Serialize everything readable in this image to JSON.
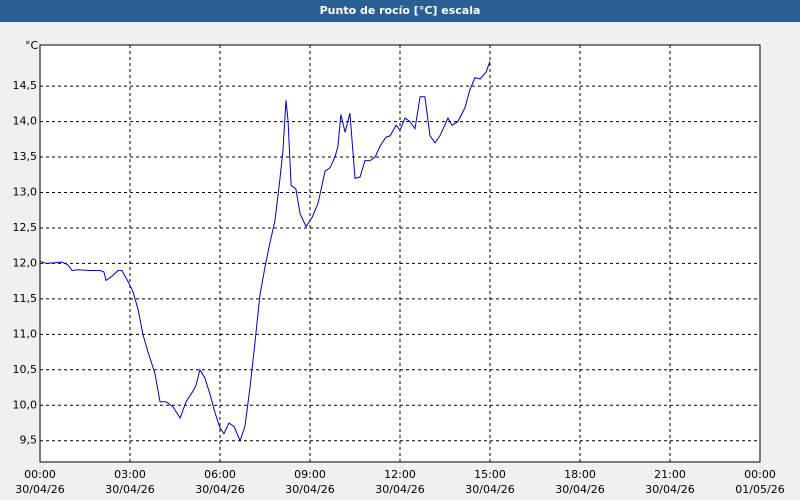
{
  "chart_data": {
    "type": "line",
    "title": "Punto de rocío [°C] escala",
    "y_unit": "°C",
    "color": "#0000c8",
    "grid": true,
    "x": [
      0,
      0.2,
      0.5,
      0.73,
      0.93,
      1.07,
      1.27,
      1.67,
      2,
      2.13,
      2.2,
      2.4,
      2.6,
      2.73,
      2.93,
      3.1,
      3.27,
      3.43,
      3.6,
      3.83,
      4,
      4.2,
      4.43,
      4.67,
      4.87,
      5.1,
      5.2,
      5.33,
      5.5,
      5.67,
      5.83,
      6,
      6.13,
      6.3,
      6.47,
      6.67,
      6.83,
      7,
      7.17,
      7.33,
      7.5,
      7.67,
      7.83,
      8,
      8.1,
      8.2,
      8.27,
      8.37,
      8.53,
      8.67,
      8.87,
      9.07,
      9.27,
      9.5,
      9.67,
      9.83,
      9.93,
      10.03,
      10.17,
      10.33,
      10.5,
      10.67,
      10.83,
      11,
      11.17,
      11.33,
      11.53,
      11.67,
      11.87,
      12,
      12.17,
      12.33,
      12.5,
      12.67,
      12.83,
      13,
      13.17,
      13.33,
      13.6,
      13.73,
      13.93,
      14.17,
      14.33,
      14.5,
      14.67,
      14.87,
      15
    ],
    "values": [
      12.03,
      12.0,
      12.01,
      12.02,
      11.98,
      11.9,
      11.91,
      11.9,
      11.9,
      11.88,
      11.76,
      11.82,
      11.9,
      11.9,
      11.75,
      11.6,
      11.35,
      11.0,
      10.75,
      10.45,
      10.05,
      10.05,
      9.98,
      9.82,
      10.05,
      10.2,
      10.28,
      10.5,
      10.38,
      10.15,
      9.9,
      9.68,
      9.6,
      9.75,
      9.7,
      9.5,
      9.7,
      10.25,
      10.9,
      11.55,
      11.95,
      12.3,
      12.6,
      13.2,
      13.6,
      14.3,
      14.0,
      13.1,
      13.05,
      12.7,
      12.52,
      12.65,
      12.85,
      13.3,
      13.35,
      13.5,
      13.65,
      14.1,
      13.85,
      14.12,
      13.2,
      13.22,
      13.45,
      13.45,
      13.5,
      13.65,
      13.78,
      13.8,
      13.95,
      13.88,
      14.05,
      14.0,
      13.9,
      14.35,
      14.35,
      13.8,
      13.7,
      13.8,
      14.05,
      13.95,
      14.0,
      14.2,
      14.45,
      14.62,
      14.6,
      14.7,
      14.85
    ],
    "xlim": [
      0,
      24
    ],
    "xticks": [
      {
        "value": 0,
        "label": "00:00",
        "date": "30/04/26"
      },
      {
        "value": 3,
        "label": "03:00",
        "date": "30/04/26"
      },
      {
        "value": 6,
        "label": "06:00",
        "date": "30/04/26"
      },
      {
        "value": 9,
        "label": "09:00",
        "date": "30/04/26"
      },
      {
        "value": 12,
        "label": "12:00",
        "date": "30/04/26"
      },
      {
        "value": 15,
        "label": "15:00",
        "date": "30/04/26"
      },
      {
        "value": 18,
        "label": "18:00",
        "date": "30/04/26"
      },
      {
        "value": 21,
        "label": "21:00",
        "date": "30/04/26"
      },
      {
        "value": 24,
        "label": "00:00",
        "date": "01/05/26"
      }
    ],
    "ylim": [
      9.2,
      15.08
    ],
    "yticks": [
      {
        "value": 9.5,
        "label": "9,5"
      },
      {
        "value": 10,
        "label": "10,0"
      },
      {
        "value": 10.5,
        "label": "10,5"
      },
      {
        "value": 11,
        "label": "11,0"
      },
      {
        "value": 11.5,
        "label": "11,5"
      },
      {
        "value": 12,
        "label": "12,0"
      },
      {
        "value": 12.5,
        "label": "12,5"
      },
      {
        "value": 13,
        "label": "13,0"
      },
      {
        "value": 13.5,
        "label": "13,5"
      },
      {
        "value": 14,
        "label": "14,0"
      },
      {
        "value": 14.5,
        "label": "14,5"
      }
    ]
  }
}
